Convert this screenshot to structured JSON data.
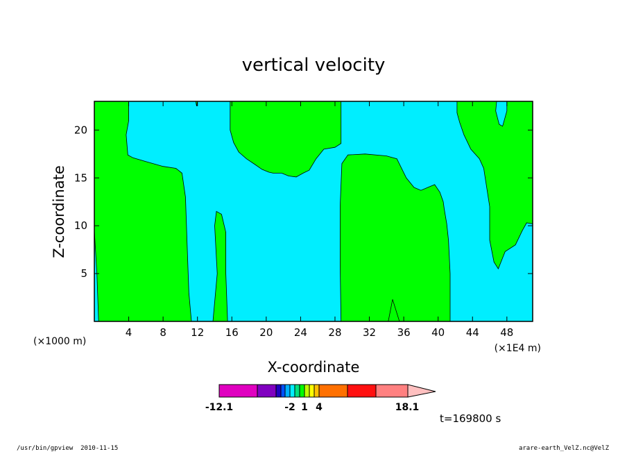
{
  "chart_data": {
    "type": "contour",
    "title": "vertical velocity",
    "xlabel": "X-coordinate",
    "ylabel": "Z-coordinate",
    "x_unit_left": "(×1000 m)",
    "x_unit_right": "(×1E4 m)",
    "xlim": [
      0,
      51
    ],
    "ylim": [
      0,
      23
    ],
    "x_ticks": [
      4,
      8,
      12,
      16,
      20,
      24,
      28,
      32,
      36,
      40,
      44,
      48
    ],
    "x_tick_labels": [
      "4",
      "8",
      "12",
      "16",
      "20",
      "24",
      "28",
      "32",
      "36",
      "40",
      "44",
      "48"
    ],
    "y_ticks": [
      5,
      10,
      15,
      20
    ],
    "y_tick_labels": [
      "5",
      "10",
      "15",
      "20"
    ],
    "fill_colors": {
      "positive": "#00ff00",
      "negative": "#00eeff",
      "outline": "#000000"
    },
    "colorbar": {
      "min_label": "-12.1",
      "max_label": "18.1",
      "tick_labels": [
        "-2",
        "1",
        "4"
      ],
      "segments": [
        {
          "color": "#e000c0",
          "from": -12.1,
          "to": -8
        },
        {
          "color": "#8000c0",
          "from": -8,
          "to": -6
        },
        {
          "color": "#2000c0",
          "from": -6,
          "to": -4
        },
        {
          "color": "#0050ff",
          "from": -4,
          "to": -3
        },
        {
          "color": "#00b0ff",
          "from": -3,
          "to": -2
        },
        {
          "color": "#00eeff",
          "from": -2,
          "to": -1
        },
        {
          "color": "#00e080",
          "from": -1,
          "to": 0
        },
        {
          "color": "#00ff00",
          "from": 0,
          "to": 1
        },
        {
          "color": "#c0ff00",
          "from": 1,
          "to": 2
        },
        {
          "color": "#ffff00",
          "from": 2,
          "to": 3
        },
        {
          "color": "#ffc000",
          "from": 3,
          "to": 4
        },
        {
          "color": "#ff7000",
          "from": 4,
          "to": 8
        },
        {
          "color": "#ff1010",
          "from": 8,
          "to": 12
        },
        {
          "color": "#ff8080",
          "from": 12,
          "to": 16
        },
        {
          "color": "#ffc0c0",
          "from": 16,
          "to": 18.1
        }
      ]
    },
    "regions_positive": [
      [
        [
          0,
          23
        ],
        [
          4,
          23
        ],
        [
          4,
          21
        ],
        [
          3.7,
          19.5
        ],
        [
          3.9,
          17.4
        ],
        [
          4.5,
          17.1
        ],
        [
          6,
          16.7
        ],
        [
          8,
          16.2
        ],
        [
          9.5,
          16
        ],
        [
          10.2,
          15.5
        ],
        [
          10.6,
          13
        ],
        [
          10.8,
          8
        ],
        [
          11,
          3
        ],
        [
          11.3,
          0
        ],
        [
          0.5,
          0
        ],
        [
          0.3,
          5
        ],
        [
          0,
          9.5
        ]
      ],
      [
        [
          11.8,
          23
        ],
        [
          12,
          23
        ],
        [
          11.9,
          22.5
        ]
      ],
      [
        [
          13.8,
          0
        ],
        [
          14.3,
          5
        ],
        [
          14,
          10
        ],
        [
          14.2,
          11.5
        ],
        [
          14.8,
          11.2
        ],
        [
          15.3,
          9.3
        ],
        [
          15.3,
          5
        ],
        [
          15.5,
          0
        ]
      ],
      [
        [
          15.8,
          23
        ],
        [
          28.7,
          23
        ],
        [
          28.7,
          18.6
        ],
        [
          28,
          18.2
        ],
        [
          26.7,
          18
        ],
        [
          25.8,
          17
        ],
        [
          25,
          15.8
        ],
        [
          24.3,
          15.5
        ],
        [
          23.5,
          15.1
        ],
        [
          22.6,
          15.2
        ],
        [
          21.8,
          15.5
        ],
        [
          20.8,
          15.5
        ],
        [
          20.3,
          15.6
        ],
        [
          19.5,
          15.9
        ],
        [
          18.7,
          16.4
        ],
        [
          17.7,
          17
        ],
        [
          16.8,
          17.7
        ],
        [
          16.2,
          18.7
        ],
        [
          15.8,
          20
        ]
      ],
      [
        [
          28.7,
          0
        ],
        [
          28.6,
          6
        ],
        [
          28.6,
          12
        ],
        [
          28.8,
          16.5
        ],
        [
          29.5,
          17.4
        ],
        [
          31.5,
          17.5
        ],
        [
          34,
          17.3
        ],
        [
          35.2,
          17
        ],
        [
          36.3,
          15
        ],
        [
          37.2,
          14
        ],
        [
          38,
          13.7
        ],
        [
          38.8,
          14
        ],
        [
          39.6,
          14.3
        ],
        [
          40.2,
          13.5
        ],
        [
          40.6,
          12.5
        ],
        [
          40.7,
          11.8
        ],
        [
          41,
          10.2
        ],
        [
          41.2,
          8.5
        ],
        [
          41.4,
          5
        ],
        [
          41.4,
          0
        ]
      ],
      [
        [
          31,
          0
        ],
        [
          34.2,
          0
        ],
        [
          34.7,
          2.3
        ],
        [
          35.5,
          0
        ],
        [
          41.4,
          0
        ]
      ],
      [
        [
          42.2,
          23
        ],
        [
          51,
          23
        ],
        [
          51,
          10.2
        ],
        [
          50.3,
          10.3
        ],
        [
          49.8,
          9.5
        ],
        [
          49,
          8
        ],
        [
          47.8,
          7.3
        ],
        [
          47,
          5.5
        ],
        [
          46.5,
          6.2
        ],
        [
          46,
          8.5
        ],
        [
          46,
          12
        ],
        [
          45.3,
          16
        ],
        [
          44.8,
          17
        ],
        [
          43.8,
          18
        ],
        [
          43,
          19.5
        ],
        [
          42.5,
          20.8
        ],
        [
          42.2,
          21.8
        ]
      ]
    ],
    "regions_negative_holes": [
      [
        [
          46.8,
          23
        ],
        [
          48,
          23
        ],
        [
          48,
          22
        ],
        [
          47.5,
          20.4
        ],
        [
          47.1,
          20.6
        ],
        [
          46.7,
          22
        ]
      ]
    ]
  },
  "footer": {
    "left": "/usr/bin/gpview  2010-11-15",
    "right": "arare-earth_VelZ.nc@VelZ",
    "time": "t=169800 s"
  }
}
